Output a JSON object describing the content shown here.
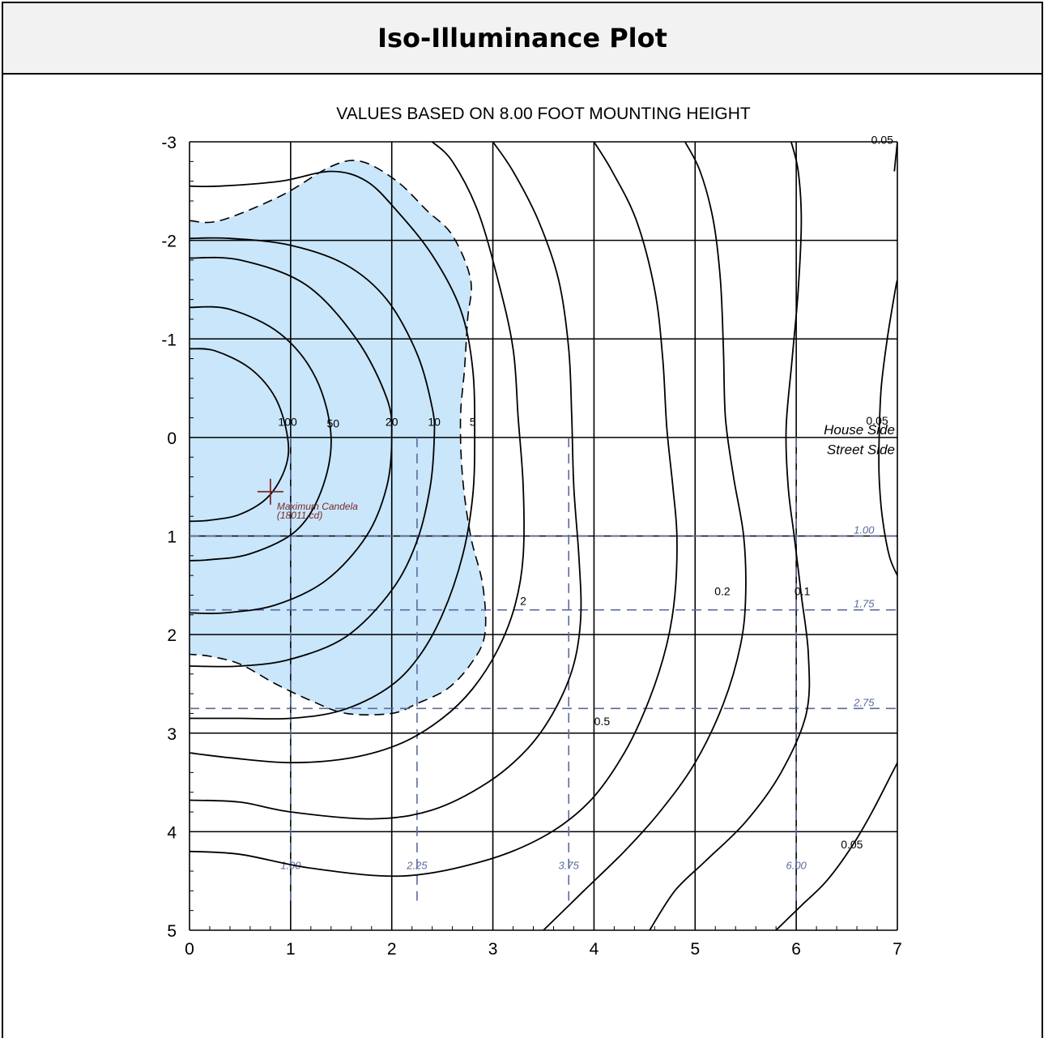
{
  "header": {
    "title": "Iso-Illuminance Plot"
  },
  "chart_data": {
    "type": "contour",
    "title": "Iso-Illuminance Plot",
    "subtitle": "VALUES BASED ON 8.00 FOOT MOUNTING HEIGHT",
    "xlim": [
      0,
      7
    ],
    "ylim": [
      -3,
      5
    ],
    "y_inverted": true,
    "x_ticks": [
      "0",
      "1",
      "2",
      "3",
      "4",
      "5",
      "6",
      "7"
    ],
    "y_ticks": [
      "-3",
      "-2",
      "-1",
      "0",
      "1",
      "2",
      "3",
      "4",
      "5"
    ],
    "grid": true,
    "contour_labels": [
      {
        "text": "100",
        "x": 0.97,
        "y": -0.12
      },
      {
        "text": "50",
        "x": 1.42,
        "y": -0.1
      },
      {
        "text": "20",
        "x": 2.0,
        "y": -0.12
      },
      {
        "text": "10",
        "x": 2.42,
        "y": -0.12
      },
      {
        "text": "5",
        "x": 2.8,
        "y": -0.12
      },
      {
        "text": "2",
        "x": 3.3,
        "y": 1.7
      },
      {
        "text": "0.5",
        "x": 4.08,
        "y": 2.92
      },
      {
        "text": "0.2",
        "x": 5.27,
        "y": 1.6
      },
      {
        "text": "0.1",
        "x": 6.06,
        "y": 1.6
      },
      {
        "text": "0.05",
        "x": 6.85,
        "y": -2.98
      },
      {
        "text": "0.05",
        "x": 6.8,
        "y": -0.13
      },
      {
        "text": "0.05",
        "x": 6.55,
        "y": 4.17
      }
    ],
    "contours": [
      {
        "level": "100",
        "points": [
          [
            0,
            -0.9
          ],
          [
            0.25,
            -0.88
          ],
          [
            0.6,
            -0.7
          ],
          [
            0.85,
            -0.4
          ],
          [
            0.97,
            0
          ],
          [
            0.95,
            0.3
          ],
          [
            0.78,
            0.6
          ],
          [
            0.5,
            0.78
          ],
          [
            0.2,
            0.84
          ],
          [
            0,
            0.85
          ]
        ]
      },
      {
        "level": "50",
        "points": [
          [
            0,
            -1.32
          ],
          [
            0.4,
            -1.3
          ],
          [
            0.9,
            -1.05
          ],
          [
            1.25,
            -0.6
          ],
          [
            1.4,
            0
          ],
          [
            1.3,
            0.55
          ],
          [
            1.05,
            0.95
          ],
          [
            0.6,
            1.18
          ],
          [
            0.2,
            1.24
          ],
          [
            0,
            1.25
          ]
        ]
      },
      {
        "level": "20",
        "points": [
          [
            0,
            -1.82
          ],
          [
            0.5,
            -1.8
          ],
          [
            1.15,
            -1.55
          ],
          [
            1.65,
            -1.0
          ],
          [
            1.95,
            -0.4
          ],
          [
            2.0,
            0
          ],
          [
            1.95,
            0.5
          ],
          [
            1.75,
            1.0
          ],
          [
            1.35,
            1.45
          ],
          [
            0.85,
            1.7
          ],
          [
            0.35,
            1.78
          ],
          [
            0,
            1.78
          ]
        ]
      },
      {
        "level": "10",
        "points": [
          [
            0,
            -2.02
          ],
          [
            0.4,
            -2.02
          ],
          [
            1.0,
            -1.95
          ],
          [
            1.55,
            -1.75
          ],
          [
            1.95,
            -1.4
          ],
          [
            2.25,
            -0.85
          ],
          [
            2.4,
            -0.3
          ],
          [
            2.42,
            0
          ],
          [
            2.38,
            0.5
          ],
          [
            2.25,
            1.05
          ],
          [
            2.0,
            1.55
          ],
          [
            1.55,
            2.02
          ],
          [
            1.0,
            2.25
          ],
          [
            0.5,
            2.32
          ],
          [
            0,
            2.32
          ]
        ]
      },
      {
        "level": "5",
        "points": [
          [
            0,
            -2.55
          ],
          [
            0.3,
            -2.55
          ],
          [
            0.9,
            -2.6
          ],
          [
            1.4,
            -2.7
          ],
          [
            1.75,
            -2.6
          ],
          [
            2.05,
            -2.3
          ],
          [
            2.4,
            -1.85
          ],
          [
            2.68,
            -1.3
          ],
          [
            2.8,
            -0.7
          ],
          [
            2.82,
            0
          ],
          [
            2.8,
            0.6
          ],
          [
            2.7,
            1.2
          ],
          [
            2.5,
            1.8
          ],
          [
            2.25,
            2.25
          ],
          [
            1.95,
            2.55
          ],
          [
            1.5,
            2.77
          ],
          [
            1.0,
            2.85
          ],
          [
            0.5,
            2.85
          ],
          [
            0,
            2.85
          ]
        ]
      },
      {
        "level": "2",
        "points": [
          [
            0,
            3.2
          ],
          [
            0.4,
            3.25
          ],
          [
            1.0,
            3.3
          ],
          [
            1.6,
            3.25
          ],
          [
            2.1,
            3.1
          ],
          [
            2.5,
            2.85
          ],
          [
            2.8,
            2.55
          ],
          [
            3.05,
            2.15
          ],
          [
            3.22,
            1.7
          ],
          [
            3.3,
            1.2
          ],
          [
            3.3,
            0.5
          ],
          [
            3.25,
            -0.2
          ],
          [
            3.2,
            -0.9
          ],
          [
            3.05,
            -1.6
          ],
          [
            2.85,
            -2.3
          ],
          [
            2.6,
            -2.8
          ],
          [
            2.4,
            -3
          ]
        ]
      },
      {
        "level": "1",
        "points": [
          [
            0,
            3.68
          ],
          [
            0.5,
            3.7
          ],
          [
            1.0,
            3.8
          ],
          [
            1.8,
            3.87
          ],
          [
            2.4,
            3.78
          ],
          [
            2.95,
            3.5
          ],
          [
            3.35,
            3.15
          ],
          [
            3.62,
            2.75
          ],
          [
            3.8,
            2.3
          ],
          [
            3.87,
            1.8
          ],
          [
            3.85,
            1.2
          ],
          [
            3.8,
            0.5
          ],
          [
            3.78,
            -0.2
          ],
          [
            3.75,
            -0.9
          ],
          [
            3.65,
            -1.6
          ],
          [
            3.45,
            -2.2
          ],
          [
            3.2,
            -2.7
          ],
          [
            3.0,
            -3
          ]
        ]
      },
      {
        "level": "0.5",
        "points": [
          [
            0,
            4.2
          ],
          [
            0.5,
            4.23
          ],
          [
            1.2,
            4.37
          ],
          [
            2.1,
            4.45
          ],
          [
            2.9,
            4.3
          ],
          [
            3.5,
            4.05
          ],
          [
            3.95,
            3.7
          ],
          [
            4.3,
            3.2
          ],
          [
            4.55,
            2.65
          ],
          [
            4.72,
            2.1
          ],
          [
            4.8,
            1.6
          ],
          [
            4.82,
            1.0
          ],
          [
            4.78,
            0.5
          ],
          [
            4.72,
            -0.1
          ],
          [
            4.68,
            -0.8
          ],
          [
            4.6,
            -1.5
          ],
          [
            4.42,
            -2.2
          ],
          [
            4.18,
            -2.7
          ],
          [
            4.0,
            -3
          ]
        ]
      },
      {
        "level": "0.2",
        "points": [
          [
            3.5,
            5
          ],
          [
            3.9,
            4.6
          ],
          [
            4.3,
            4.2
          ],
          [
            4.65,
            3.8
          ],
          [
            5.0,
            3.3
          ],
          [
            5.28,
            2.7
          ],
          [
            5.45,
            2.1
          ],
          [
            5.5,
            1.6
          ],
          [
            5.48,
            1.0
          ],
          [
            5.38,
            0.4
          ],
          [
            5.3,
            -0.2
          ],
          [
            5.28,
            -0.9
          ],
          [
            5.25,
            -1.6
          ],
          [
            5.18,
            -2.2
          ],
          [
            5.05,
            -2.7
          ],
          [
            4.9,
            -3
          ]
        ]
      },
      {
        "level": "0.1",
        "points": [
          [
            4.55,
            5
          ],
          [
            4.8,
            4.6
          ],
          [
            5.1,
            4.3
          ],
          [
            5.5,
            3.9
          ],
          [
            5.85,
            3.4
          ],
          [
            6.1,
            2.8
          ],
          [
            6.12,
            2.2
          ],
          [
            6.05,
            1.6
          ],
          [
            5.98,
            1.0
          ],
          [
            5.92,
            0.5
          ],
          [
            5.9,
            -0.1
          ],
          [
            5.96,
            -0.8
          ],
          [
            6.02,
            -1.5
          ],
          [
            6.05,
            -2.2
          ],
          [
            6.02,
            -2.7
          ],
          [
            5.95,
            -3
          ]
        ]
      },
      {
        "level": "0.05",
        "points": [
          [
            5.8,
            5
          ],
          [
            6.05,
            4.75
          ],
          [
            6.3,
            4.5
          ],
          [
            6.55,
            4.15
          ],
          [
            6.75,
            3.8
          ],
          [
            6.95,
            3.4
          ],
          [
            7.0,
            3.3
          ]
        ]
      },
      {
        "level": "0.05",
        "points": [
          [
            7.0,
            1.4
          ],
          [
            6.92,
            1.2
          ],
          [
            6.85,
            0.8
          ],
          [
            6.82,
            0.4
          ],
          [
            6.82,
            0
          ],
          [
            6.84,
            -0.5
          ],
          [
            6.9,
            -1.0
          ],
          [
            6.98,
            -1.5
          ],
          [
            7.0,
            -1.6
          ]
        ]
      },
      {
        "level": "0.05",
        "points": [
          [
            6.97,
            -2.7
          ],
          [
            6.99,
            -2.9
          ],
          [
            7.0,
            -3
          ]
        ]
      }
    ],
    "shaded_region_points": [
      [
        0,
        -2.2
      ],
      [
        0.3,
        -2.2
      ],
      [
        0.9,
        -2.45
      ],
      [
        1.4,
        -2.75
      ],
      [
        1.7,
        -2.8
      ],
      [
        2.05,
        -2.6
      ],
      [
        2.35,
        -2.3
      ],
      [
        2.6,
        -2.05
      ],
      [
        2.78,
        -1.6
      ],
      [
        2.75,
        -1.2
      ],
      [
        2.72,
        -0.7
      ],
      [
        2.68,
        -0.2
      ],
      [
        2.7,
        0.4
      ],
      [
        2.78,
        1.0
      ],
      [
        2.9,
        1.5
      ],
      [
        2.92,
        2.0
      ],
      [
        2.78,
        2.3
      ],
      [
        2.55,
        2.55
      ],
      [
        2.25,
        2.7
      ],
      [
        2.0,
        2.8
      ],
      [
        1.55,
        2.8
      ],
      [
        1.2,
        2.67
      ],
      [
        0.85,
        2.5
      ],
      [
        0.5,
        2.3
      ],
      [
        0.2,
        2.22
      ],
      [
        0,
        2.2
      ]
    ],
    "house_side_label": "House Side",
    "street_side_label": "Street Side",
    "reference_lines": {
      "horizontal": [
        1.0,
        1.75,
        2.75
      ],
      "horizontal_labels": [
        "1.00",
        "1.75",
        "2.75"
      ],
      "vertical": [
        1.0,
        2.25,
        3.75,
        6.0
      ],
      "vertical_labels": [
        "1.00",
        "2.25",
        "3.75",
        "6.00"
      ]
    },
    "max_candela": {
      "x": 0.8,
      "y": 0.55,
      "label": "Maximum Candela",
      "value_label": "(18011 cd)"
    },
    "colors": {
      "shade": "#c9e6fa",
      "reference": "#5a6a9c",
      "marker": "#7a2a2a",
      "grid": "#000000"
    }
  }
}
